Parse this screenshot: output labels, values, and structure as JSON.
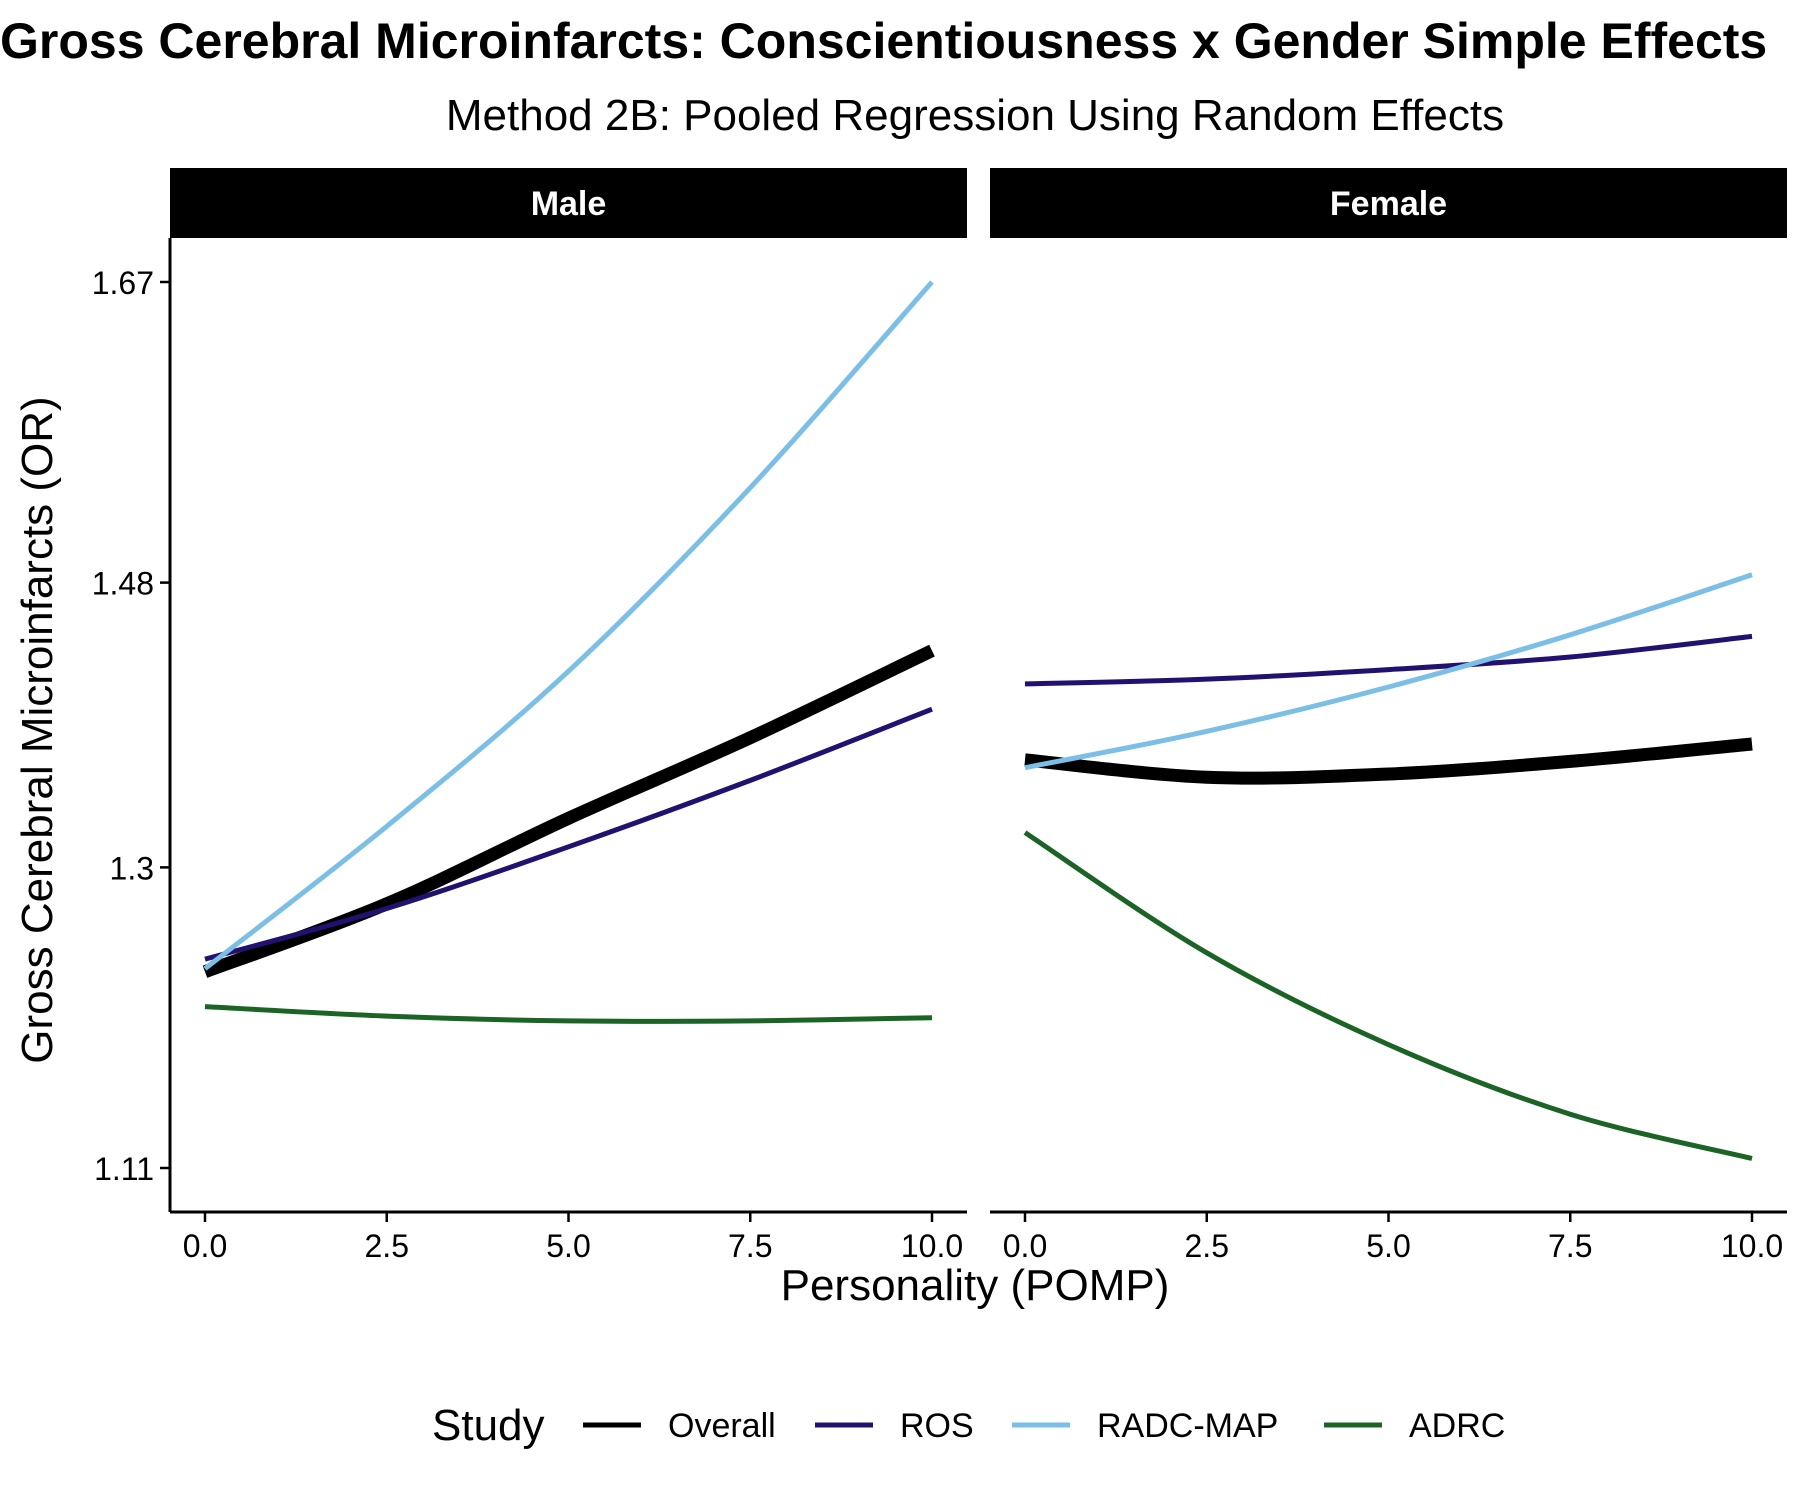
{
  "chart_data": {
    "type": "line",
    "title": "Gross Cerebral Microinfarcts: Conscientiousness x Gender Simple Effects",
    "subtitle": "Method 2B: Pooled Regression Using Random Effects",
    "xlabel": "Personality (POMP)",
    "ylabel": "Gross Cerebral Microinfarcts (OR)",
    "xlim": [
      0,
      10
    ],
    "ylim": [
      1.11,
      1.67
    ],
    "x_ticks": [
      0,
      2.5,
      5,
      7.5,
      10
    ],
    "x_tick_labels": [
      "0.0",
      "2.5",
      "5.0",
      "7.5",
      "10.0"
    ],
    "y_ticks": [
      1.11,
      1.3,
      1.48,
      1.67
    ],
    "y_tick_labels": [
      "1.11",
      "1.3",
      "1.48",
      "1.67"
    ],
    "grid": false,
    "legend": {
      "title": "Study",
      "position": "bottom",
      "entries": [
        {
          "label": "Overall",
          "color": "#000000"
        },
        {
          "label": "ROS",
          "color": "#231170"
        },
        {
          "label": "RADC-MAP",
          "color": "#7bbfe6"
        },
        {
          "label": "ADRC",
          "color": "#1b6425"
        }
      ]
    },
    "panels": [
      {
        "label": "Male",
        "series": [
          {
            "name": "Overall",
            "color": "#000000",
            "x": [
              0,
              2.5,
              5,
              7.5,
              10
            ],
            "y": [
              1.234,
              1.277,
              1.331,
              1.382,
              1.437
            ]
          },
          {
            "name": "ROS",
            "color": "#231170",
            "x": [
              0,
              2.5,
              5,
              7.5,
              10
            ],
            "y": [
              1.242,
              1.274,
              1.313,
              1.355,
              1.4
            ]
          },
          {
            "name": "RADC-MAP",
            "color": "#7bbfe6",
            "x": [
              0,
              2.5,
              5,
              7.5,
              10
            ],
            "y": [
              1.236,
              1.326,
              1.424,
              1.54,
              1.67
            ]
          },
          {
            "name": "ADRC",
            "color": "#1b6425",
            "x": [
              0,
              2.5,
              5,
              7.5,
              10
            ],
            "y": [
              1.212,
              1.206,
              1.203,
              1.203,
              1.205
            ]
          }
        ]
      },
      {
        "label": "Female",
        "series": [
          {
            "name": "Overall",
            "color": "#000000",
            "x": [
              0,
              2.5,
              5,
              7.5,
              10
            ],
            "y": [
              1.368,
              1.357,
              1.359,
              1.367,
              1.378
            ]
          },
          {
            "name": "ROS",
            "color": "#231170",
            "x": [
              0,
              2.5,
              5,
              7.5,
              10
            ],
            "y": [
              1.416,
              1.419,
              1.425,
              1.433,
              1.446
            ]
          },
          {
            "name": "RADC-MAP",
            "color": "#7bbfe6",
            "x": [
              0,
              2.5,
              5,
              7.5,
              10
            ],
            "y": [
              1.363,
              1.386,
              1.414,
              1.447,
              1.485
            ]
          },
          {
            "name": "ADRC",
            "color": "#1b6425",
            "x": [
              0,
              2.5,
              5,
              7.5,
              10
            ],
            "y": [
              1.322,
              1.246,
              1.188,
              1.144,
              1.116
            ]
          }
        ]
      }
    ]
  }
}
